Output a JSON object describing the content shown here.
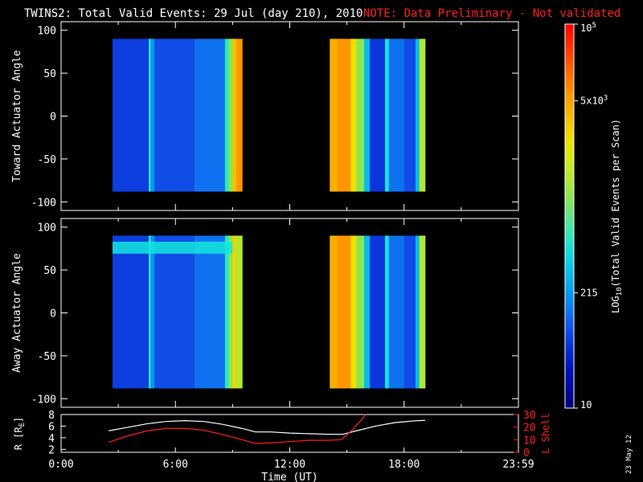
{
  "title": "TWINS2: Total Valid Events: 29 Jul (day 210), 2010",
  "note": "NOTE: Data Preliminary - Not validated",
  "date_stamp": "23 May 12",
  "colors": {
    "background": "#000000",
    "axes": "#ffffff",
    "note": "#ff1f1f",
    "l_shell": "#ff1f1f",
    "r_trace": "#ffffff"
  },
  "chart_data": [
    {
      "type": "heatmap",
      "panel": "toward",
      "ylabel": "Toward Actuator Angle",
      "xlim": [
        0,
        24
      ],
      "ylim": [
        -110,
        110
      ],
      "yticks": [
        100,
        50,
        0,
        -50,
        -100
      ],
      "angle_range": [
        -88,
        90
      ],
      "segments": [
        [
          2.7,
          9.5
        ],
        [
          14.1,
          19.1
        ]
      ],
      "columns": [
        {
          "t0": 2.7,
          "t1": 4.6,
          "level": 0.18
        },
        {
          "t0": 4.6,
          "t1": 4.7,
          "level": 0.45
        },
        {
          "t0": 4.7,
          "t1": 4.9,
          "level": 0.3
        },
        {
          "t0": 4.9,
          "t1": 7.0,
          "level": 0.2
        },
        {
          "t0": 7.0,
          "t1": 8.6,
          "level": 0.25
        },
        {
          "t0": 8.6,
          "t1": 8.8,
          "level": 0.45
        },
        {
          "t0": 8.8,
          "t1": 9.0,
          "level": 0.55
        },
        {
          "t0": 9.0,
          "t1": 9.2,
          "level": 0.75
        },
        {
          "t0": 9.2,
          "t1": 9.5,
          "level": 0.82
        },
        {
          "t0": 14.1,
          "t1": 14.5,
          "level": 0.78
        },
        {
          "t0": 14.5,
          "t1": 15.2,
          "level": 0.82
        },
        {
          "t0": 15.2,
          "t1": 15.5,
          "level": 0.7
        },
        {
          "t0": 15.5,
          "t1": 15.9,
          "level": 0.55
        },
        {
          "t0": 15.9,
          "t1": 16.2,
          "level": 0.35
        },
        {
          "t0": 16.2,
          "t1": 17.0,
          "level": 0.17
        },
        {
          "t0": 17.0,
          "t1": 17.2,
          "level": 0.42
        },
        {
          "t0": 17.2,
          "t1": 18.0,
          "level": 0.25
        },
        {
          "t0": 18.0,
          "t1": 18.6,
          "level": 0.2
        },
        {
          "t0": 18.6,
          "t1": 18.8,
          "level": 0.35
        },
        {
          "t0": 18.8,
          "t1": 19.1,
          "level": 0.6
        }
      ]
    },
    {
      "type": "heatmap",
      "panel": "away",
      "ylabel": "Away Actuator Angle",
      "xlim": [
        0,
        24
      ],
      "ylim": [
        -110,
        110
      ],
      "yticks": [
        100,
        50,
        0,
        -50,
        -100
      ],
      "angle_range": [
        -88,
        90
      ],
      "segments": [
        [
          2.7,
          9.5
        ],
        [
          14.1,
          19.1
        ]
      ],
      "band": {
        "angle": 76,
        "level": 0.42,
        "t0": 2.7,
        "t1": 9.0
      },
      "columns": [
        {
          "t0": 2.7,
          "t1": 4.6,
          "level": 0.18
        },
        {
          "t0": 4.6,
          "t1": 4.7,
          "level": 0.45
        },
        {
          "t0": 4.7,
          "t1": 4.9,
          "level": 0.3
        },
        {
          "t0": 4.9,
          "t1": 7.0,
          "level": 0.2
        },
        {
          "t0": 7.0,
          "t1": 8.6,
          "level": 0.25
        },
        {
          "t0": 8.6,
          "t1": 8.8,
          "level": 0.45
        },
        {
          "t0": 8.8,
          "t1": 9.0,
          "level": 0.55
        },
        {
          "t0": 9.0,
          "t1": 9.2,
          "level": 0.72
        },
        {
          "t0": 9.2,
          "t1": 9.5,
          "level": 0.6
        },
        {
          "t0": 14.1,
          "t1": 14.5,
          "level": 0.78
        },
        {
          "t0": 14.5,
          "t1": 15.2,
          "level": 0.82
        },
        {
          "t0": 15.2,
          "t1": 15.5,
          "level": 0.7
        },
        {
          "t0": 15.5,
          "t1": 15.9,
          "level": 0.55
        },
        {
          "t0": 15.9,
          "t1": 16.2,
          "level": 0.35
        },
        {
          "t0": 16.2,
          "t1": 17.0,
          "level": 0.17
        },
        {
          "t0": 17.0,
          "t1": 17.2,
          "level": 0.42
        },
        {
          "t0": 17.2,
          "t1": 18.0,
          "level": 0.25
        },
        {
          "t0": 18.0,
          "t1": 18.6,
          "level": 0.2
        },
        {
          "t0": 18.6,
          "t1": 18.8,
          "level": 0.35
        },
        {
          "t0": 18.8,
          "t1": 19.1,
          "level": 0.6
        }
      ]
    },
    {
      "type": "line",
      "panel": "orbit",
      "xlabel": "Time (UT)",
      "xticks": [
        {
          "t": 0,
          "label": "0:00"
        },
        {
          "t": 6,
          "label": "6:00"
        },
        {
          "t": 12,
          "label": "12:00"
        },
        {
          "t": 18,
          "label": "18:00"
        },
        {
          "t": 24,
          "label": "23:59"
        }
      ],
      "xlim": [
        0,
        24
      ],
      "left_axis": {
        "label": "R [R",
        "label_sub": "E",
        "label_end": "]",
        "ylim": [
          1.5,
          8
        ],
        "ticks": [
          2,
          4,
          6,
          8
        ]
      },
      "right_axis": {
        "label": "L Shell",
        "ylim": [
          0,
          30
        ],
        "ticks": [
          0,
          10,
          20,
          30
        ]
      },
      "series": [
        {
          "axis": "left",
          "points": [
            [
              2.5,
              5.2
            ],
            [
              3.5,
              5.8
            ],
            [
              4.5,
              6.4
            ],
            [
              5.5,
              6.8
            ],
            [
              6.5,
              6.95
            ],
            [
              7.5,
              6.8
            ],
            [
              8.5,
              6.3
            ],
            [
              9.5,
              5.6
            ],
            [
              10.2,
              5.0
            ],
            [
              11,
              5.0
            ],
            [
              12,
              4.8
            ],
            [
              13,
              4.7
            ],
            [
              14,
              4.6
            ],
            [
              14.8,
              4.6
            ],
            [
              15.5,
              5.2
            ],
            [
              16.5,
              6.0
            ],
            [
              17.5,
              6.6
            ],
            [
              18.5,
              6.9
            ],
            [
              19.1,
              7.0
            ]
          ]
        },
        {
          "axis": "right",
          "points": [
            [
              2.5,
              8
            ],
            [
              3.5,
              13
            ],
            [
              4.5,
              17
            ],
            [
              5.5,
              19
            ],
            [
              6.5,
              19
            ],
            [
              7.5,
              17.5
            ],
            [
              8.5,
              14
            ],
            [
              9.5,
              10
            ],
            [
              10.2,
              7
            ],
            [
              11,
              7.5
            ],
            [
              12,
              8.5
            ],
            [
              13,
              9.5
            ],
            [
              14,
              9.5
            ],
            [
              14.7,
              10
            ],
            [
              15.3,
              18
            ],
            [
              16.0,
              30
            ]
          ]
        }
      ]
    }
  ],
  "colorbar": {
    "label": "LOG",
    "label_sub": "10",
    "label_end": "(Total Valid Events per Scan)",
    "ticks": [
      {
        "base": "10",
        "exp": "5",
        "frac": 1.0
      },
      {
        "base": "5x10",
        "exp": "3",
        "frac": 0.8
      },
      {
        "base": "215",
        "exp": "",
        "frac": 0.3
      },
      {
        "base": "10",
        "exp": "",
        "frac": 0.0
      }
    ]
  }
}
